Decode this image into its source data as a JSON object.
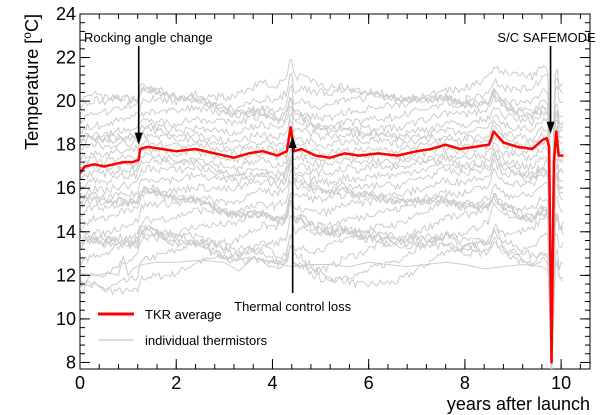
{
  "chart_data": {
    "type": "line",
    "xlabel": "years after launch",
    "ylabel": "Temperature [°C]",
    "ylabel_parts": {
      "before": "Temperature [",
      "sup": "o",
      "after": "C]"
    },
    "xlim": [
      0,
      10.6
    ],
    "ylim": [
      7.7,
      24
    ],
    "x_ticks": [
      0,
      2,
      4,
      6,
      8,
      10
    ],
    "x_tick_labels": [
      "0",
      "2",
      "4",
      "6",
      "8",
      "10"
    ],
    "y_ticks": [
      8,
      10,
      12,
      14,
      16,
      18,
      20,
      22,
      24
    ],
    "y_tick_labels": [
      "8",
      "10",
      "12",
      "14",
      "16",
      "18",
      "20",
      "22",
      "24"
    ],
    "grid": false,
    "legend_position": "bottom-left",
    "series": [
      {
        "name": "TKR average",
        "color": "#ff0000",
        "x": [
          0,
          0.1,
          0.3,
          0.5,
          0.7,
          0.9,
          1.1,
          1.22,
          1.25,
          1.4,
          1.7,
          2.0,
          2.4,
          2.8,
          3.2,
          3.5,
          3.8,
          4.1,
          4.3,
          4.38,
          4.45,
          4.6,
          4.9,
          5.2,
          5.5,
          5.8,
          6.2,
          6.6,
          7.0,
          7.3,
          7.6,
          7.9,
          8.2,
          8.5,
          8.6,
          8.8,
          9.1,
          9.4,
          9.6,
          9.7,
          9.75,
          9.8,
          9.85,
          9.9,
          9.95,
          10.05
        ],
        "y": [
          16.7,
          17.0,
          17.1,
          17.0,
          17.1,
          17.2,
          17.2,
          17.3,
          17.8,
          17.9,
          17.8,
          17.7,
          17.8,
          17.6,
          17.4,
          17.6,
          17.7,
          17.5,
          17.7,
          18.8,
          17.7,
          17.8,
          17.5,
          17.4,
          17.6,
          17.5,
          17.6,
          17.5,
          17.7,
          17.8,
          18.0,
          17.8,
          17.9,
          18.0,
          18.6,
          18.1,
          17.9,
          17.8,
          18.2,
          18.3,
          17.9,
          8.0,
          17.2,
          18.6,
          17.5,
          17.5
        ]
      },
      {
        "name": "individual thermistors",
        "color": "#cccccc",
        "offsets": [
          -5.2,
          -4.9,
          -4.6,
          -4.3,
          -4.0,
          -3.7,
          -3.4,
          -3.1,
          -2.8,
          -2.5,
          -2.2,
          -1.9,
          -1.6,
          -1.3,
          -1.0,
          -0.7,
          -0.4,
          -0.1,
          0.2,
          0.5,
          0.8,
          1.1,
          1.4,
          1.7,
          2.0,
          2.3,
          2.6,
          2.9
        ],
        "low_trace": {
          "x": [
            0,
            0.3,
            0.6,
            0.8,
            0.9,
            1.0,
            1.1,
            1.2,
            1.3,
            1.6,
            2.0,
            2.5,
            3.0,
            3.3,
            3.6,
            4.0,
            4.4,
            4.8,
            5.2,
            5.6,
            6.0,
            6.4,
            6.8,
            7.2,
            7.6,
            8.0,
            8.4,
            8.8,
            9.2,
            9.6,
            9.75
          ],
          "y": [
            12.1,
            12.0,
            12.1,
            12.0,
            12.9,
            12.0,
            12.3,
            12.4,
            12.5,
            12.6,
            12.6,
            12.7,
            12.6,
            12.2,
            12.8,
            12.6,
            12.4,
            12.5,
            12.5,
            12.4,
            12.6,
            12.5,
            12.4,
            12.5,
            12.6,
            12.5,
            12.3,
            12.4,
            12.5,
            12.4,
            12.2
          ]
        }
      }
    ],
    "annotations": [
      {
        "text": "Rocking angle change",
        "x": 1.22,
        "y": 18.0,
        "label_side": "above"
      },
      {
        "text": "Thermal control loss",
        "x": 4.42,
        "y": 18.4,
        "label_side": "below"
      },
      {
        "text": "S/C SAFEMODE",
        "x": 9.78,
        "y": 18.5,
        "label_side": "above"
      }
    ]
  }
}
